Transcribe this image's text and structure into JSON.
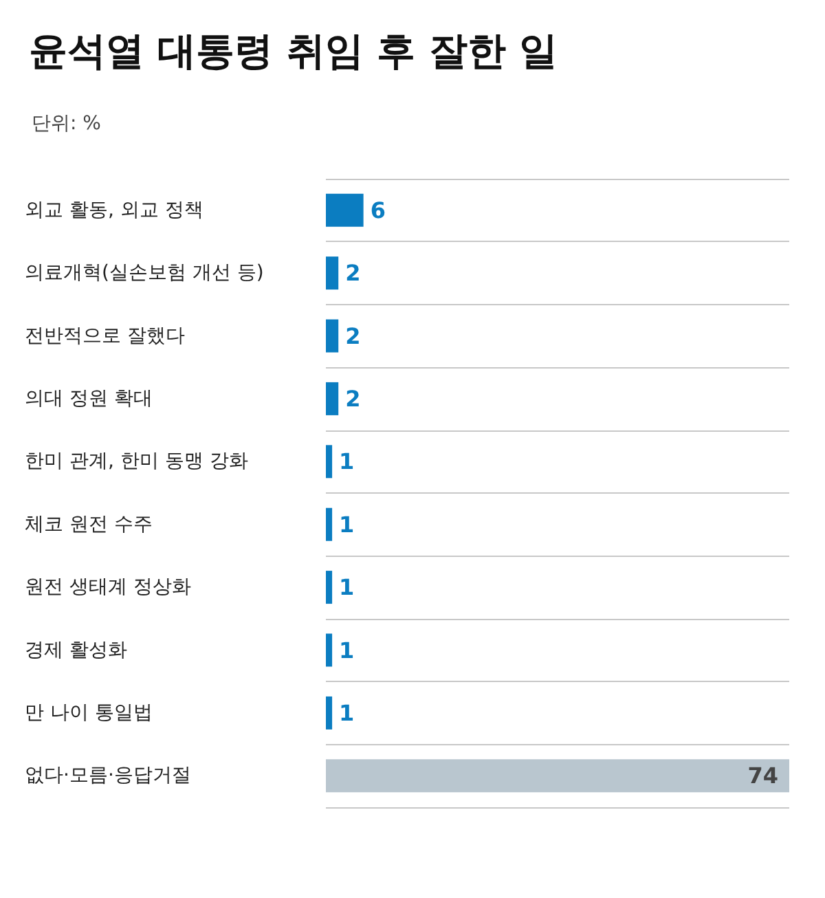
{
  "chart_data": {
    "type": "bar",
    "orientation": "horizontal",
    "title": "윤석열 대통령 취임 후 잘한 일",
    "subtitle": "단위: %",
    "categories": [
      "외교 활동, 외교 정책",
      "의료개혁(실손보험 개선 등)",
      "전반적으로 잘했다",
      "의대 정원 확대",
      "한미 관계, 한미 동맹 강화",
      "체코 원전 수주",
      "원전 생태계 정상화",
      "경제 활성화",
      "만 나이 통일법",
      "없다·모름·응답거절"
    ],
    "values": [
      6,
      2,
      2,
      2,
      1,
      1,
      1,
      1,
      1,
      74
    ],
    "colors": [
      "#0b7dc1",
      "#0b7dc1",
      "#0b7dc1",
      "#0b7dc1",
      "#0b7dc1",
      "#0b7dc1",
      "#0b7dc1",
      "#0b7dc1",
      "#0b7dc1",
      "#b9c6cf"
    ],
    "data_labels": true,
    "grid": "y"
  }
}
